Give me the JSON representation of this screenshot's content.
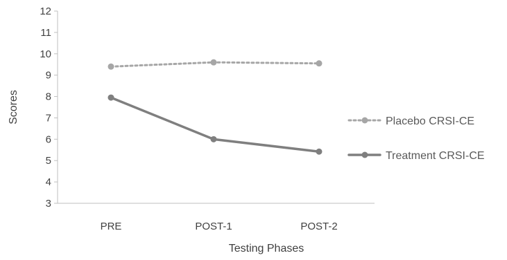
{
  "chart_data": {
    "type": "line",
    "categories": [
      "PRE",
      "POST-1",
      "POST-2"
    ],
    "series": [
      {
        "name": "Placebo CRSI-CE",
        "values": [
          9.4,
          9.6,
          9.55
        ],
        "color": "#a6a6a6",
        "style": "dotted"
      },
      {
        "name": "Treatment CRSI-CE",
        "values": [
          7.95,
          6.0,
          5.42
        ],
        "color": "#7f7f7f",
        "style": "solid"
      }
    ],
    "title": "",
    "xlabel": "Testing Phases",
    "ylabel": "Scores",
    "ylim": [
      3,
      12
    ],
    "yticks": [
      3,
      4,
      5,
      6,
      7,
      8,
      9,
      10,
      11,
      12
    ],
    "grid": false,
    "legend": "right"
  }
}
